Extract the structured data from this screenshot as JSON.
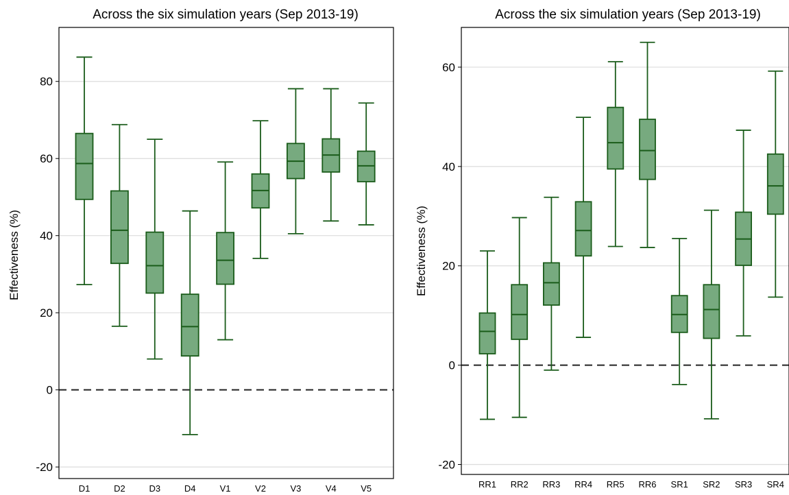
{
  "chart_data": [
    {
      "type": "boxplot",
      "title": "Across the six simulation years (Sep 2013-19)",
      "xlabel": "",
      "ylabel": "Effectiveness (%)",
      "ylim": [
        -23,
        94
      ],
      "yticks": [
        -20,
        0,
        20,
        40,
        60,
        80
      ],
      "grid": true,
      "reference_line": 0,
      "box_color": "#77aa7f",
      "line_color": "#1a5c1a",
      "categories": [
        "D1",
        "D2",
        "D3",
        "D4",
        "V1",
        "V2",
        "V3",
        "V4",
        "V5"
      ],
      "boxes": [
        {
          "min": 27.3,
          "q1": 49.4,
          "median": 58.7,
          "q3": 66.5,
          "max": 86.3
        },
        {
          "min": 16.5,
          "q1": 32.8,
          "median": 41.4,
          "q3": 51.6,
          "max": 68.8
        },
        {
          "min": 8.0,
          "q1": 25.1,
          "median": 32.2,
          "q3": 40.9,
          "max": 65.0
        },
        {
          "min": -11.6,
          "q1": 8.8,
          "median": 16.4,
          "q3": 24.8,
          "max": 46.4
        },
        {
          "min": 13.0,
          "q1": 27.4,
          "median": 33.6,
          "q3": 40.8,
          "max": 59.1
        },
        {
          "min": 34.1,
          "q1": 47.2,
          "median": 51.7,
          "q3": 56.0,
          "max": 69.8
        },
        {
          "min": 40.5,
          "q1": 54.8,
          "median": 59.3,
          "q3": 63.9,
          "max": 78.1
        },
        {
          "min": 43.8,
          "q1": 56.5,
          "median": 60.9,
          "q3": 65.1,
          "max": 78.1
        },
        {
          "min": 42.8,
          "q1": 54.0,
          "median": 58.1,
          "q3": 61.9,
          "max": 74.4
        }
      ]
    },
    {
      "type": "boxplot",
      "title": "Across the six simulation years (Sep 2013-19)",
      "xlabel": "",
      "ylabel": "Effectiveness (%)",
      "ylim": [
        -22,
        68
      ],
      "yticks": [
        -20,
        0,
        20,
        40,
        60
      ],
      "grid": true,
      "reference_line": 0,
      "box_color": "#77aa7f",
      "line_color": "#1a5c1a",
      "categories": [
        "RR1",
        "RR2",
        "RR3",
        "RR4",
        "RR5",
        "RR6",
        "SR1",
        "SR2",
        "SR3",
        "SR4"
      ],
      "boxes": [
        {
          "min": -10.9,
          "q1": 2.3,
          "median": 6.8,
          "q3": 10.5,
          "max": 23.0
        },
        {
          "min": -10.5,
          "q1": 5.2,
          "median": 10.2,
          "q3": 16.2,
          "max": 29.7
        },
        {
          "min": -1.0,
          "q1": 12.1,
          "median": 16.6,
          "q3": 20.6,
          "max": 33.8
        },
        {
          "min": 5.6,
          "q1": 22.0,
          "median": 27.1,
          "q3": 32.9,
          "max": 49.9
        },
        {
          "min": 23.9,
          "q1": 39.5,
          "median": 44.8,
          "q3": 51.9,
          "max": 61.1
        },
        {
          "min": 23.7,
          "q1": 37.4,
          "median": 43.2,
          "q3": 49.5,
          "max": 65.0
        },
        {
          "min": -3.9,
          "q1": 6.6,
          "median": 10.2,
          "q3": 14.0,
          "max": 25.5
        },
        {
          "min": -10.8,
          "q1": 5.4,
          "median": 11.2,
          "q3": 16.2,
          "max": 31.2
        },
        {
          "min": 5.9,
          "q1": 20.1,
          "median": 25.4,
          "q3": 30.8,
          "max": 47.3
        },
        {
          "min": 13.7,
          "q1": 30.4,
          "median": 36.1,
          "q3": 42.5,
          "max": 59.2
        }
      ]
    }
  ]
}
